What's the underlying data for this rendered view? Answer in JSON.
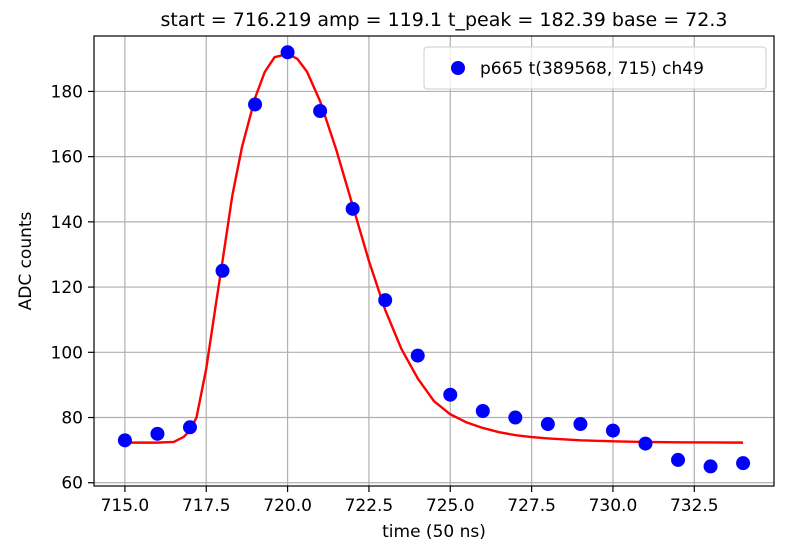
{
  "chart_data": {
    "type": "scatter",
    "title": "start = 716.219   amp = 119.1   t_peak = 182.39   base = 72.3",
    "xlabel": "time (50 ns)",
    "ylabel": "ADC counts",
    "xlim": [
      714.05,
      734.95
    ],
    "ylim": [
      59,
      197
    ],
    "xticks": [
      715.0,
      717.5,
      720.0,
      722.5,
      725.0,
      727.5,
      730.0,
      732.5
    ],
    "xtick_labels": [
      "715.0",
      "717.5",
      "720.0",
      "722.5",
      "725.0",
      "727.5",
      "730.0",
      "732.5"
    ],
    "yticks": [
      60,
      80,
      100,
      120,
      140,
      160,
      180
    ],
    "ytick_labels": [
      "60",
      "80",
      "100",
      "120",
      "140",
      "160",
      "180"
    ],
    "grid": true,
    "legend_position": "top-right",
    "series": [
      {
        "name": "p665 t(389568, 715) ch49",
        "kind": "scatter",
        "color": "#0000ff",
        "x": [
          715,
          716,
          717,
          718,
          719,
          720,
          721,
          722,
          723,
          724,
          725,
          726,
          727,
          728,
          729,
          730,
          731,
          732,
          733,
          734
        ],
        "y": [
          73,
          75,
          77,
          125,
          176,
          192,
          174,
          144,
          116,
          99,
          87,
          82,
          80,
          78,
          78,
          76,
          72,
          67,
          65,
          66
        ]
      },
      {
        "name": "",
        "kind": "line",
        "color": "#ff0000",
        "x": [
          715.0,
          716.0,
          716.5,
          716.8,
          717.0,
          717.2,
          717.5,
          717.8,
          718.0,
          718.3,
          718.6,
          719.0,
          719.3,
          719.6,
          720.0,
          720.3,
          720.6,
          721.0,
          721.5,
          722.0,
          722.5,
          723.0,
          723.5,
          724.0,
          724.5,
          725.0,
          725.5,
          726.0,
          726.5,
          727.0,
          727.5,
          728.0,
          729.0,
          730.0,
          731.0,
          732.0,
          733.0,
          734.0
        ],
        "y": [
          72.3,
          72.3,
          72.5,
          74.0,
          76.0,
          80.0,
          95.0,
          115.0,
          128.0,
          148.0,
          163.0,
          178.0,
          186.0,
          190.5,
          191.5,
          190.0,
          186.0,
          177.0,
          162.0,
          145.0,
          128.0,
          113.0,
          101.0,
          92.0,
          85.0,
          81.0,
          78.5,
          76.8,
          75.5,
          74.6,
          74.0,
          73.6,
          73.0,
          72.7,
          72.5,
          72.4,
          72.35,
          72.3
        ]
      }
    ]
  }
}
